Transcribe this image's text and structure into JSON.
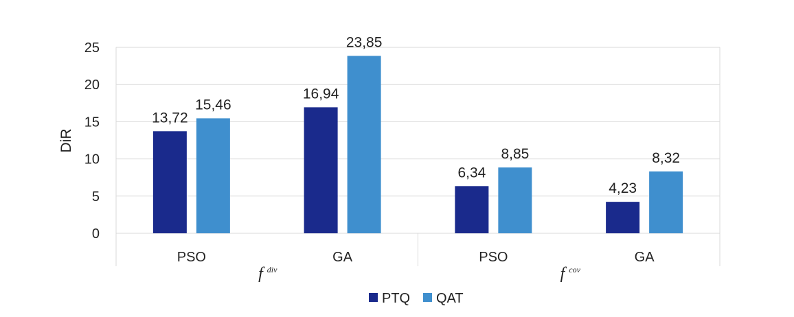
{
  "chart_data": {
    "type": "bar",
    "ylabel": "DiR",
    "xlabel": "",
    "ylim": [
      0,
      25
    ],
    "yticks": [
      0,
      5,
      10,
      15,
      20,
      25
    ],
    "grid": true,
    "legend_position": "bottom",
    "groups": [
      {
        "label_base": "f",
        "label_sup": "div",
        "categories": [
          "PSO",
          "GA"
        ]
      },
      {
        "label_base": "f",
        "label_sup": "cov",
        "categories": [
          "PSO",
          "GA"
        ]
      }
    ],
    "categories": [
      "PSO",
      "GA",
      "PSO",
      "GA"
    ],
    "series": [
      {
        "name": "PTQ",
        "color": "#1a2a8c",
        "values": [
          13.72,
          16.94,
          6.34,
          4.23
        ],
        "labels": [
          "13,72",
          "16,94",
          "6,34",
          "4,23"
        ]
      },
      {
        "name": "QAT",
        "color": "#3f8fce",
        "values": [
          15.46,
          23.85,
          8.85,
          8.32
        ],
        "labels": [
          "15,46",
          "23,85",
          "8,85",
          "8,32"
        ]
      }
    ]
  }
}
